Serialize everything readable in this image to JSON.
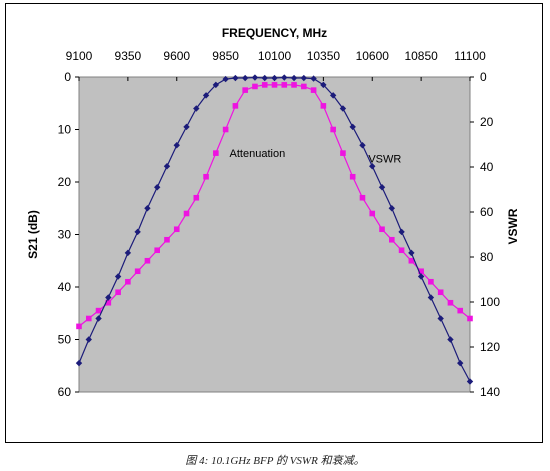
{
  "caption": "图 4: 10.1GHz BFP 的 VSWR 和衰减。",
  "chart_data": {
    "type": "line",
    "title": "FREQUENCY, MHz",
    "x_axis_top": {
      "label": "FREQUENCY, MHz",
      "ticks": [
        9100,
        9350,
        9600,
        9850,
        10100,
        10350,
        10600,
        10850,
        11100
      ],
      "range": [
        9100,
        11100
      ]
    },
    "y_left": {
      "label": "S21 (dB)",
      "range": [
        0,
        60
      ],
      "ticks": [
        0,
        10,
        20,
        30,
        40,
        50,
        60
      ],
      "inverted": true
    },
    "y_right": {
      "label": "VSWR",
      "range": [
        0,
        140
      ],
      "ticks": [
        0,
        20,
        40,
        60,
        80,
        100,
        120,
        140
      ],
      "inverted": true
    },
    "plot_background": "#c0c0c0",
    "grid": false,
    "series": [
      {
        "name": "VSWR",
        "axis": "left",
        "color": "#1c1c7a",
        "marker": "diamond",
        "x": [
          9100,
          9150,
          9200,
          9250,
          9300,
          9350,
          9400,
          9450,
          9500,
          9550,
          9600,
          9650,
          9700,
          9750,
          9800,
          9850,
          9900,
          9950,
          10000,
          10050,
          10100,
          10150,
          10200,
          10250,
          10300,
          10350,
          10400,
          10450,
          10500,
          10550,
          10600,
          10650,
          10700,
          10750,
          10800,
          10850,
          10900,
          10950,
          11000,
          11050,
          11100
        ],
        "y": [
          54.5,
          50,
          46,
          42,
          38,
          33.5,
          29.5,
          25,
          21,
          17,
          13,
          9.5,
          6,
          3.5,
          1.5,
          0.4,
          0.2,
          0.2,
          0.1,
          0.2,
          0.2,
          0.1,
          0.2,
          0.2,
          0.3,
          1.5,
          3.5,
          6,
          9.5,
          13,
          17,
          21,
          25,
          29.5,
          33.5,
          38,
          42,
          46,
          50,
          54.5,
          58
        ]
      },
      {
        "name": "Attenuation",
        "axis": "left",
        "color": "#ee14e0",
        "marker": "square",
        "x": [
          9100,
          9150,
          9200,
          9250,
          9300,
          9350,
          9400,
          9450,
          9500,
          9550,
          9600,
          9650,
          9700,
          9750,
          9800,
          9850,
          9900,
          9950,
          10000,
          10050,
          10100,
          10150,
          10200,
          10250,
          10300,
          10350,
          10400,
          10450,
          10500,
          10550,
          10600,
          10650,
          10700,
          10750,
          10800,
          10850,
          10900,
          10950,
          11000,
          11050,
          11100
        ],
        "y": [
          47.5,
          46,
          44.5,
          43,
          41,
          39,
          37,
          35,
          33,
          31,
          29,
          26,
          23,
          19,
          14.5,
          10,
          5.5,
          2.5,
          1.8,
          1.5,
          1.5,
          1.5,
          1.5,
          1.8,
          2.5,
          5.5,
          10,
          14.5,
          19,
          23,
          26,
          29,
          31,
          33,
          35,
          37,
          39,
          41,
          43,
          44.5,
          46
        ]
      }
    ],
    "annotations": [
      {
        "text": "Attenuation",
        "x": 9870,
        "y": 14.5
      },
      {
        "text": "VSWR",
        "x": 10580,
        "y": 15.5
      }
    ]
  }
}
